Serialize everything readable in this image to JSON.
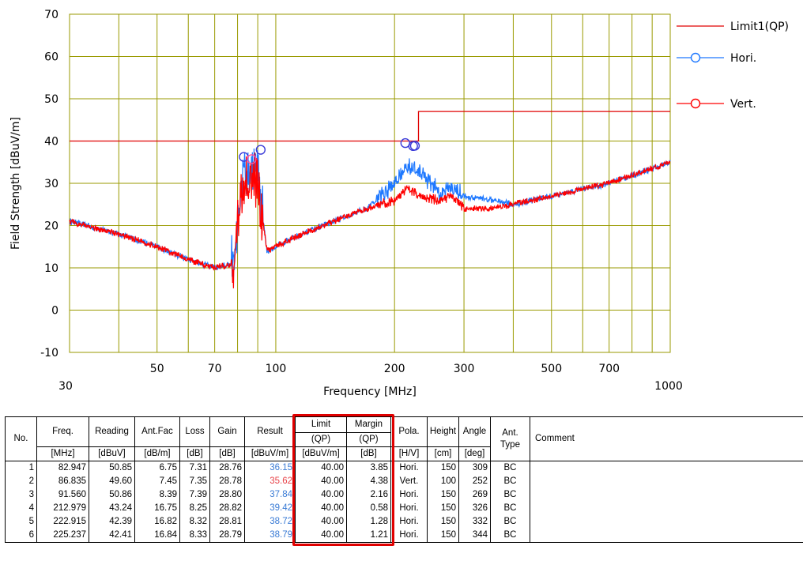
{
  "chart_data": {
    "type": "line",
    "xscale": "log",
    "xlim": [
      30,
      1000
    ],
    "ylim": [
      -10,
      70
    ],
    "xlabel": "Frequency [MHz]",
    "ylabel": "Field Strength [dBuV/m]",
    "x_ticks": [
      "30",
      "50",
      "70",
      "100",
      "200",
      "300",
      "500",
      "700",
      "1000"
    ],
    "y_ticks": [
      "70",
      "60",
      "50",
      "40",
      "30",
      "20",
      "10",
      "0",
      "-10"
    ],
    "grid": true,
    "grid_color": "#9a9a00",
    "legend_position": "right",
    "series": [
      {
        "name": "Limit1(QP)",
        "color": "#e00000",
        "kind": "limit",
        "x": [
          30,
          230,
          230,
          1000
        ],
        "y": [
          40,
          40,
          47,
          47
        ]
      },
      {
        "name": "Hori.",
        "color": "#1e78ff",
        "kind": "trace",
        "x": [
          30,
          40,
          50,
          60,
          70,
          78,
          82,
          86,
          90,
          95,
          110,
          140,
          170,
          200,
          215,
          230,
          260,
          280,
          300,
          350,
          400,
          500,
          700,
          1000
        ],
        "y": [
          21,
          18,
          15,
          12,
          10,
          11,
          32,
          30,
          33,
          14,
          17,
          21,
          24,
          30,
          34,
          33,
          28,
          29,
          27,
          26,
          25,
          27,
          30,
          35
        ]
      },
      {
        "name": "Vert.",
        "color": "#ff0000",
        "kind": "trace",
        "x": [
          30,
          40,
          50,
          60,
          70,
          78,
          82,
          86,
          90,
          95,
          110,
          140,
          170,
          200,
          215,
          230,
          260,
          280,
          300,
          350,
          400,
          500,
          700,
          1000
        ],
        "y": [
          21,
          18,
          15,
          12,
          10,
          11,
          28,
          31,
          30,
          14,
          17,
          21,
          24,
          26,
          29,
          27,
          26,
          27,
          24,
          24,
          25,
          27,
          30,
          35
        ]
      }
    ],
    "markers": [
      {
        "x": 82.947,
        "y": 36.15,
        "pol": "Hori."
      },
      {
        "x": 86.835,
        "y": 35.62,
        "pol": "Vert."
      },
      {
        "x": 91.56,
        "y": 37.84,
        "pol": "Hori."
      },
      {
        "x": 212.979,
        "y": 39.42,
        "pol": "Hori."
      },
      {
        "x": 222.915,
        "y": 38.72,
        "pol": "Hori."
      },
      {
        "x": 225.237,
        "y": 38.79,
        "pol": "Hori."
      }
    ]
  },
  "table": {
    "headers": {
      "no": "No.",
      "freq": "Freq.",
      "reading": "Reading",
      "antfac": "Ant.Fac",
      "loss": "Loss",
      "gain": "Gain",
      "result": "Result",
      "limit": "Limit",
      "limit_sub": "(QP)",
      "margin": "Margin",
      "margin_sub": "(QP)",
      "pola": "Pola.",
      "height": "Height",
      "angle": "Angle",
      "anttype": "Ant. Type",
      "comment": "Comment"
    },
    "units": {
      "freq": "[MHz]",
      "reading": "[dBuV]",
      "antfac": "[dB/m]",
      "loss": "[dB]",
      "gain": "[dB]",
      "result": "[dBuV/m]",
      "limit": "[dBuV/m]",
      "margin": "[dB]",
      "pola": "[H/V]",
      "height": "[cm]",
      "angle": "[deg]"
    },
    "result_colors": {
      "Hori.": "#3a7bd5",
      "Vert.": "#e8444a"
    },
    "rows": [
      {
        "no": "1",
        "freq": "82.947",
        "reading": "50.85",
        "antfac": "6.75",
        "loss": "7.31",
        "gain": "28.76",
        "result": "36.15",
        "limit": "40.00",
        "margin": "3.85",
        "pola": "Hori.",
        "height": "150",
        "angle": "309",
        "anttype": "BC",
        "comment": ""
      },
      {
        "no": "2",
        "freq": "86.835",
        "reading": "49.60",
        "antfac": "7.45",
        "loss": "7.35",
        "gain": "28.78",
        "result": "35.62",
        "limit": "40.00",
        "margin": "4.38",
        "pola": "Vert.",
        "height": "100",
        "angle": "252",
        "anttype": "BC",
        "comment": ""
      },
      {
        "no": "3",
        "freq": "91.560",
        "reading": "50.86",
        "antfac": "8.39",
        "loss": "7.39",
        "gain": "28.80",
        "result": "37.84",
        "limit": "40.00",
        "margin": "2.16",
        "pola": "Hori.",
        "height": "150",
        "angle": "269",
        "anttype": "BC",
        "comment": ""
      },
      {
        "no": "4",
        "freq": "212.979",
        "reading": "43.24",
        "antfac": "16.75",
        "loss": "8.25",
        "gain": "28.82",
        "result": "39.42",
        "limit": "40.00",
        "margin": "0.58",
        "pola": "Hori.",
        "height": "150",
        "angle": "326",
        "anttype": "BC",
        "comment": ""
      },
      {
        "no": "5",
        "freq": "222.915",
        "reading": "42.39",
        "antfac": "16.82",
        "loss": "8.32",
        "gain": "28.81",
        "result": "38.72",
        "limit": "40.00",
        "margin": "1.28",
        "pola": "Hori.",
        "height": "150",
        "angle": "332",
        "anttype": "BC",
        "comment": ""
      },
      {
        "no": "6",
        "freq": "225.237",
        "reading": "42.41",
        "antfac": "16.84",
        "loss": "8.33",
        "gain": "28.79",
        "result": "38.79",
        "limit": "40.00",
        "margin": "1.21",
        "pola": "Hori.",
        "height": "150",
        "angle": "344",
        "anttype": "BC",
        "comment": ""
      }
    ]
  }
}
